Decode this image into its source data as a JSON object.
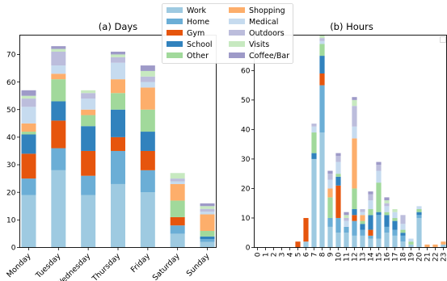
{
  "legend": {
    "placement": "top-center",
    "labels": [
      "Work",
      "Home",
      "Gym",
      "School",
      "Other",
      "Shopping",
      "Medical",
      "Outdoors",
      "Visits",
      "Coffee/Bar"
    ]
  },
  "colors": {
    "Work": "#9ecae1",
    "Home": "#6baed6",
    "Gym": "#e6550d",
    "School": "#3182bd",
    "Other": "#a1d99b",
    "Shopping": "#fdae6b",
    "Medical": "#c6dbef",
    "Outdoors": "#bcbddc",
    "Visits": "#c7e9c0",
    "Coffee/Bar": "#9e9ac8"
  },
  "chart_data": [
    {
      "type": "bar",
      "stacked": true,
      "title": "(a) Days",
      "xlabel": "",
      "ylabel": "",
      "ylim": [
        0,
        77
      ],
      "yticks": [
        0,
        10,
        20,
        30,
        40,
        50,
        60,
        70
      ],
      "categories": [
        "Monday",
        "Tuesday",
        "Wednesday",
        "Thursday",
        "Friday",
        "Saturday",
        "Sunday"
      ],
      "series": [
        {
          "name": "Work",
          "values": [
            19,
            28,
            19,
            23,
            20,
            5,
            2
          ]
        },
        {
          "name": "Home",
          "values": [
            6,
            8,
            7,
            12,
            8,
            3,
            1
          ]
        },
        {
          "name": "Gym",
          "values": [
            9,
            10,
            9,
            5,
            7,
            3,
            0
          ]
        },
        {
          "name": "School",
          "values": [
            7,
            7,
            9,
            10,
            7,
            0,
            1
          ]
        },
        {
          "name": "Other",
          "values": [
            1,
            8,
            4,
            6,
            8,
            6,
            2
          ]
        },
        {
          "name": "Shopping",
          "values": [
            3,
            2,
            2,
            5,
            8,
            6,
            6
          ]
        },
        {
          "name": "Medical",
          "values": [
            6,
            3,
            4,
            6,
            2,
            1,
            1
          ]
        },
        {
          "name": "Outdoors",
          "values": [
            3,
            5,
            2,
            2,
            2,
            1,
            1
          ]
        },
        {
          "name": "Visits",
          "values": [
            1,
            1,
            1,
            1,
            2,
            2,
            1
          ]
        },
        {
          "name": "Coffee/Bar",
          "values": [
            2,
            1,
            0,
            1,
            2,
            0,
            1
          ]
        }
      ]
    },
    {
      "type": "bar",
      "stacked": true,
      "title": "(b) Hours",
      "xlabel": "",
      "ylabel": "",
      "ylim": [
        0,
        72
      ],
      "yticks": [
        0,
        10,
        20,
        30,
        40,
        50,
        60
      ],
      "categories": [
        "0",
        "1",
        "2",
        "3",
        "4",
        "5",
        "6",
        "7",
        "8",
        "9",
        "10",
        "11",
        "12",
        "13",
        "14",
        "15",
        "16",
        "17",
        "18",
        "19",
        "20",
        "21",
        "22",
        "23"
      ],
      "series": [
        {
          "name": "Work",
          "values": [
            0,
            0,
            0,
            0,
            0,
            0,
            2,
            30,
            39,
            7,
            5,
            5,
            4,
            4,
            3,
            3,
            5,
            4,
            2,
            1,
            10,
            0,
            0,
            1
          ]
        },
        {
          "name": "Home",
          "values": [
            0,
            0,
            0,
            0,
            0,
            0,
            0,
            0,
            16,
            3,
            5,
            2,
            5,
            2,
            1,
            8,
            2,
            2,
            2,
            0,
            1,
            0,
            0,
            0
          ]
        },
        {
          "name": "Gym",
          "values": [
            0,
            0,
            0,
            0,
            0,
            2,
            8,
            0,
            4,
            0,
            11,
            0,
            2,
            0,
            2,
            0,
            0,
            0,
            0,
            0,
            0,
            0,
            0,
            0
          ]
        },
        {
          "name": "School",
          "values": [
            0,
            0,
            0,
            0,
            0,
            0,
            0,
            2,
            6,
            0,
            3,
            0,
            2,
            2,
            5,
            1,
            4,
            3,
            1,
            0,
            1,
            0,
            0,
            0
          ]
        },
        {
          "name": "Other",
          "values": [
            0,
            0,
            0,
            0,
            0,
            0,
            0,
            7,
            4,
            7,
            1,
            0,
            7,
            1,
            2,
            10,
            1,
            1,
            1,
            1,
            1,
            0,
            0,
            0
          ]
        },
        {
          "name": "Shopping",
          "values": [
            0,
            0,
            0,
            0,
            0,
            0,
            0,
            0,
            0,
            3,
            0,
            0,
            17,
            2,
            0,
            0,
            0,
            0,
            0,
            0,
            0,
            1,
            1,
            1
          ]
        },
        {
          "name": "Medical",
          "values": [
            0,
            0,
            0,
            0,
            0,
            0,
            0,
            2,
            1,
            3,
            4,
            2,
            4,
            1,
            3,
            4,
            2,
            2,
            2,
            1,
            1,
            0,
            0,
            0
          ]
        },
        {
          "name": "Outdoors",
          "values": [
            0,
            0,
            0,
            0,
            0,
            0,
            0,
            1,
            1,
            2,
            2,
            1,
            7,
            1,
            2,
            2,
            1,
            0,
            3,
            0,
            0,
            0,
            0,
            0
          ]
        },
        {
          "name": "Visits",
          "values": [
            0,
            0,
            0,
            0,
            0,
            0,
            0,
            0,
            1,
            0,
            0,
            1,
            2,
            0,
            0,
            0,
            1,
            1,
            0,
            0,
            0,
            0,
            0,
            0
          ]
        },
        {
          "name": "Coffee/Bar",
          "values": [
            0,
            0,
            0,
            0,
            0,
            0,
            0,
            0,
            0,
            1,
            1,
            1,
            1,
            0,
            1,
            1,
            1,
            0,
            0,
            0,
            0,
            0,
            0,
            0
          ]
        }
      ]
    }
  ]
}
